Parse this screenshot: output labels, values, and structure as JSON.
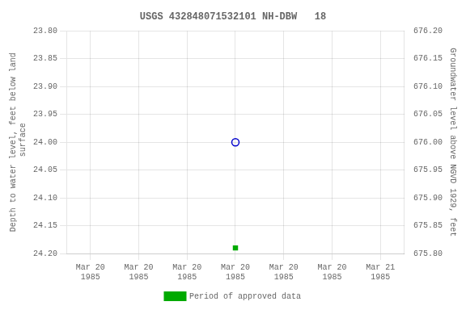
{
  "chart_data": {
    "type": "scatter",
    "title": "USGS 432848071532101 NH-DBW   18",
    "ylabel": "Depth to water level, feet below land\n surface",
    "y2label": "Groundwater level above NGVD 1929, feet",
    "categories": [
      "Mar 20\n1985",
      "Mar 20\n1985",
      "Mar 20\n1985",
      "Mar 20\n1985",
      "Mar 20\n1985",
      "Mar 20\n1985",
      "Mar 21\n1985"
    ],
    "series": [
      {
        "color": "#0000cc",
        "marker": "circle",
        "values": [
          null,
          null,
          null,
          24.0,
          null,
          null,
          null
        ]
      },
      {
        "name": "Period of approved data",
        "color": "#00aa00",
        "marker": "square",
        "values": [
          null,
          null,
          null,
          24.19,
          null,
          null,
          null
        ]
      }
    ],
    "ylim": [
      24.2,
      23.8
    ],
    "yticks": [
      {
        "value": 23.8,
        "label": "23.80"
      },
      23.85,
      {
        "value": 23.9,
        "label": "23.90"
      },
      23.95,
      {
        "value": 24.0,
        "label": "24.00"
      },
      24.05,
      {
        "value": 24.1,
        "label": "24.10"
      },
      24.15,
      {
        "value": 24.2,
        "label": "24.20"
      }
    ],
    "y2lim": [
      675.8,
      676.2
    ],
    "y2ticks": [
      {
        "value": 676.2,
        "label": "676.20"
      },
      676.15,
      {
        "value": 676.1,
        "label": "676.10"
      },
      676.05,
      {
        "value": 676.0,
        "label": "676.00"
      },
      675.95,
      {
        "value": 675.9,
        "label": "675.90"
      },
      675.85,
      {
        "value": 675.8,
        "label": "675.80"
      }
    ],
    "grid": true,
    "legend": "bottom"
  }
}
